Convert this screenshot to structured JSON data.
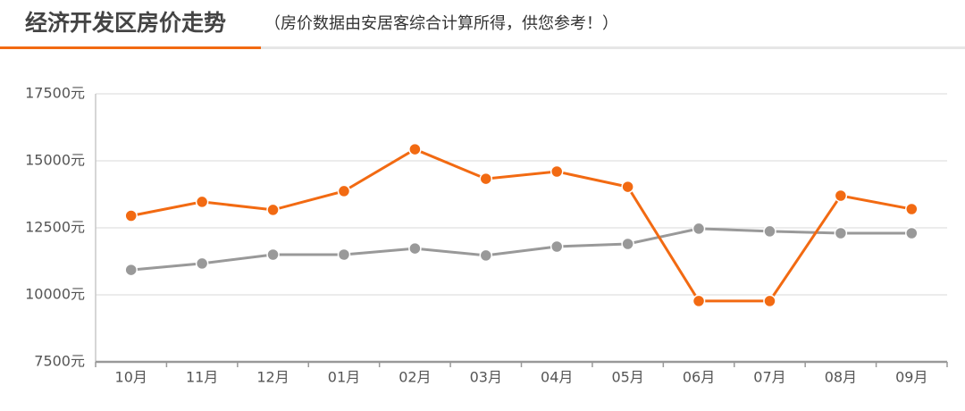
{
  "chart_data": {
    "type": "line",
    "title": "经济开发区房价走势",
    "subtitle": "（房价数据由安居客综合计算所得，供您参考！）",
    "categories": [
      "10月",
      "11月",
      "12月",
      "01月",
      "02月",
      "03月",
      "04月",
      "05月",
      "06月",
      "07月",
      "08月",
      "09月"
    ],
    "series": [
      {
        "color": "#f26a12",
        "values": [
          12950,
          13470,
          13170,
          13870,
          15430,
          14330,
          14600,
          14030,
          9770,
          9770,
          13700,
          13200
        ]
      },
      {
        "color": "#999999",
        "values": [
          10930,
          11170,
          11500,
          11500,
          11730,
          11470,
          11800,
          11900,
          12470,
          12370,
          12300,
          12300
        ]
      }
    ],
    "ylim": [
      7500,
      17500
    ],
    "yticks": [
      {
        "value": 7500,
        "label": "7500元"
      },
      {
        "value": 10000,
        "label": "10000元"
      },
      {
        "value": 12500,
        "label": "12500元"
      },
      {
        "value": 15000,
        "label": "15000元"
      },
      {
        "value": 17500,
        "label": "17500元"
      }
    ],
    "grid": true
  }
}
